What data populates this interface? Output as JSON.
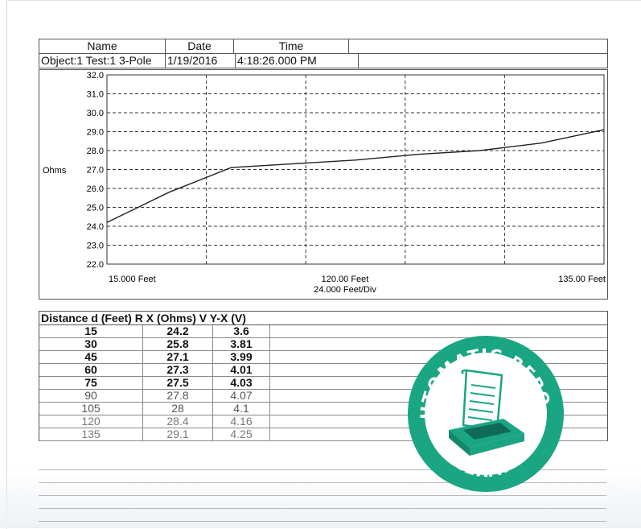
{
  "header": {
    "labels": {
      "name": "Name",
      "date": "Date",
      "time": "Time"
    },
    "values": {
      "name": "Object:1 Test:1  3-Pole",
      "date": "1/19/2016",
      "time": "4:18:26.000 PM"
    }
  },
  "chart_data": {
    "type": "line",
    "ylabel": "Ohms",
    "yticks": [
      "32.0",
      "31.0",
      "30.0",
      "29.0",
      "28.0",
      "27.0",
      "26.0",
      "25.0",
      "24.0",
      "23.0",
      "22.0"
    ],
    "ylim": [
      22,
      32
    ],
    "xlim": [
      15,
      135
    ],
    "xticks": [
      15,
      39,
      63,
      87,
      111,
      135
    ],
    "xlabels": {
      "left": "15.000 Feet",
      "center": "120.00 Feet",
      "right": "135.00 Feet",
      "div": "24.000 Feet/Div"
    },
    "x": [
      15,
      30,
      45,
      60,
      75,
      90,
      105,
      120,
      135
    ],
    "series": [
      {
        "values": [
          24.2,
          25.8,
          27.1,
          27.3,
          27.5,
          27.8,
          28.0,
          28.4,
          29.1
        ]
      }
    ],
    "grid": true,
    "line_color": "#222222",
    "grid_color": "#333333"
  },
  "table": {
    "header": "Distance d (Feet) R X (Ohms) V Y-X (V)",
    "rows": [
      [
        "15",
        "24.2",
        "3.6"
      ],
      [
        "30",
        "25.8",
        "3.81"
      ],
      [
        "45",
        "27.1",
        "3.99"
      ],
      [
        "60",
        "27.3",
        "4.01"
      ],
      [
        "75",
        "27.5",
        "4.03"
      ],
      [
        "90",
        "27.8",
        "4.07"
      ],
      [
        "105",
        "28",
        "4.1"
      ],
      [
        "120",
        "28.4",
        "4.16"
      ],
      [
        "135",
        "29.1",
        "4.25"
      ]
    ]
  },
  "stamp": {
    "top_text": "AUTOMATIC REPORT",
    "bottom_text": "GENERATION",
    "color": "#1aa583",
    "icon": "printer-report-icon"
  }
}
